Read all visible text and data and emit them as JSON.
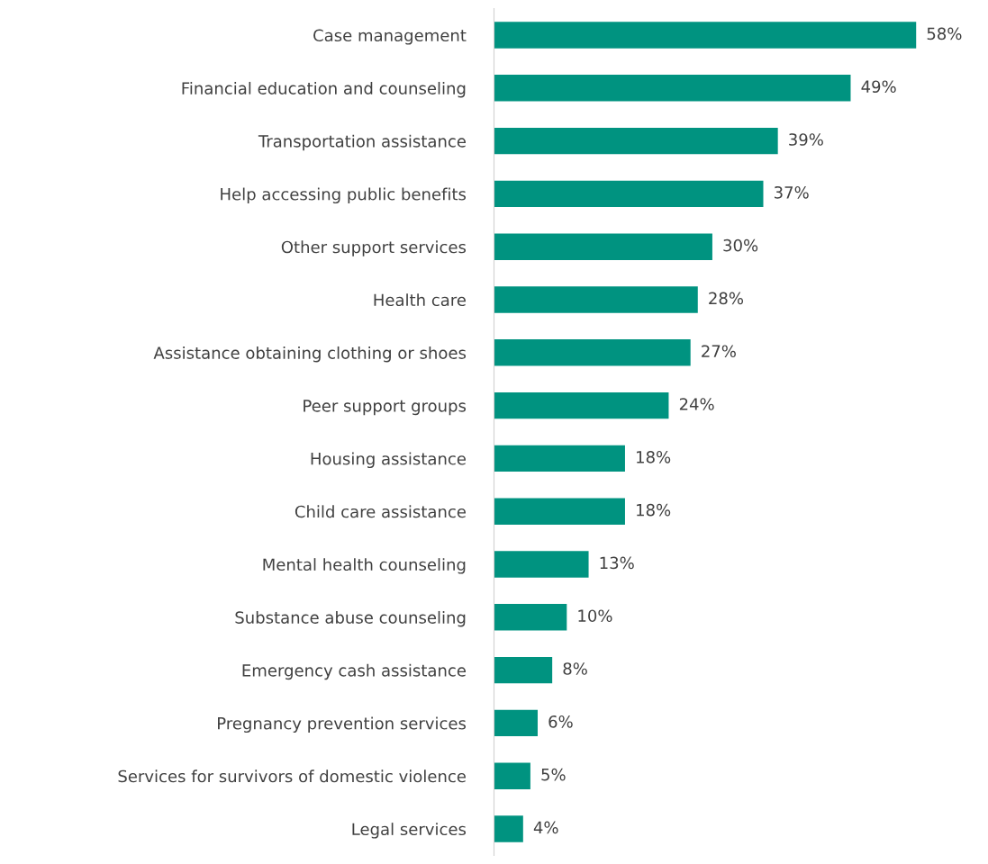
{
  "chart_data": {
    "type": "bar",
    "orientation": "horizontal",
    "categories": [
      "Case management",
      "Financial education and counseling",
      "Transportation assistance",
      "Help accessing public benefits",
      "Other support services",
      "Health care",
      "Assistance obtaining clothing or shoes",
      "Peer support groups",
      "Housing assistance",
      "Child care assistance",
      "Mental health counseling",
      "Substance abuse counseling",
      "Emergency cash assistance",
      "Pregnancy prevention services",
      "Services for survivors of domestic violence",
      "Legal services"
    ],
    "values": [
      58,
      49,
      39,
      37,
      30,
      28,
      27,
      24,
      18,
      18,
      13,
      10,
      8,
      6,
      5,
      4
    ],
    "value_labels": [
      "58%",
      "49%",
      "39%",
      "37%",
      "30%",
      "28%",
      "27%",
      "24%",
      "18%",
      "18%",
      "13%",
      "10%",
      "8%",
      "6%",
      "5%",
      "4%"
    ],
    "color": "#009380",
    "grid": false,
    "legend": false
  }
}
